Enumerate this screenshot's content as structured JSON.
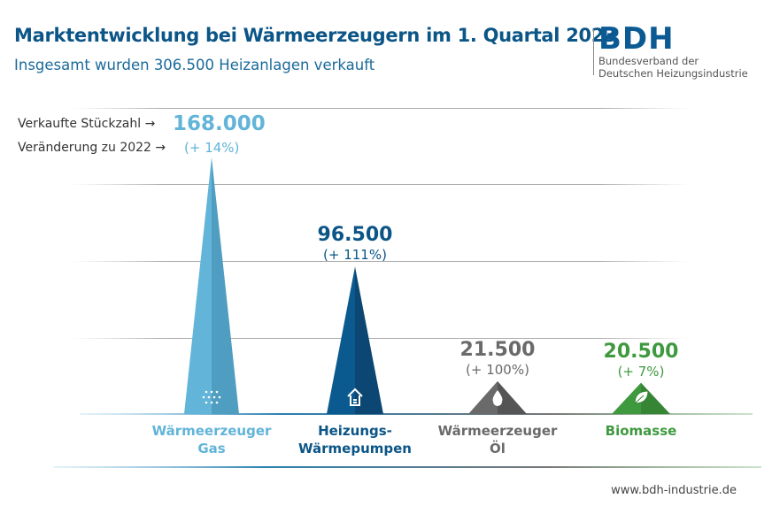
{
  "title": "Marktentwicklung bei Wärmeerzeugern im 1. Quartal 2023",
  "subtitle": "Insgesamt wurden 306.500 Heizanlagen verkauft",
  "logo": {
    "text": "BDH",
    "line1": "Bundesverband der",
    "line2": "Deutschen Heizungsindustrie"
  },
  "legend": {
    "units_label": "Verkaufte Stückzahl →",
    "change_label": "Veränderung zu 2022 →"
  },
  "footer_url": "www.bdh-industrie.de",
  "chart_data": {
    "type": "bar",
    "bar_shape": "triangle",
    "categories": [
      "Wärmeerzeuger Gas",
      "Heizungs-Wärmepumpen",
      "Wärmeerzeuger Öl",
      "Biomasse"
    ],
    "category_lines": [
      [
        "Wärmeerzeuger",
        "Gas"
      ],
      [
        "Heizungs-",
        "Wärmepumpen"
      ],
      [
        "Wärmeerzeuger",
        "Öl"
      ],
      [
        "Biomasse",
        ""
      ]
    ],
    "values": [
      168000,
      96500,
      21500,
      20500
    ],
    "value_labels": [
      "168.000",
      "96.500",
      "21.500",
      "20.500"
    ],
    "change_labels": [
      "(+ 14%)",
      "(+ 111%)",
      "(+ 100%)",
      "(+ 7%)"
    ],
    "icons": [
      "gas-flame-dots-icon",
      "heat-pump-house-icon",
      "oil-drop-icon",
      "leaf-icon"
    ],
    "colors": [
      "#62b4d8",
      "#0a5a8f",
      "#6a6a6a",
      "#3f9a3f"
    ],
    "shade_colors": [
      "#4f9dc0",
      "#0b4772",
      "#555555",
      "#358535"
    ],
    "label_colors": [
      "#62b4d8",
      "#0b5587",
      "#6a6a6a",
      "#3f9a3f"
    ],
    "grid": true
  }
}
